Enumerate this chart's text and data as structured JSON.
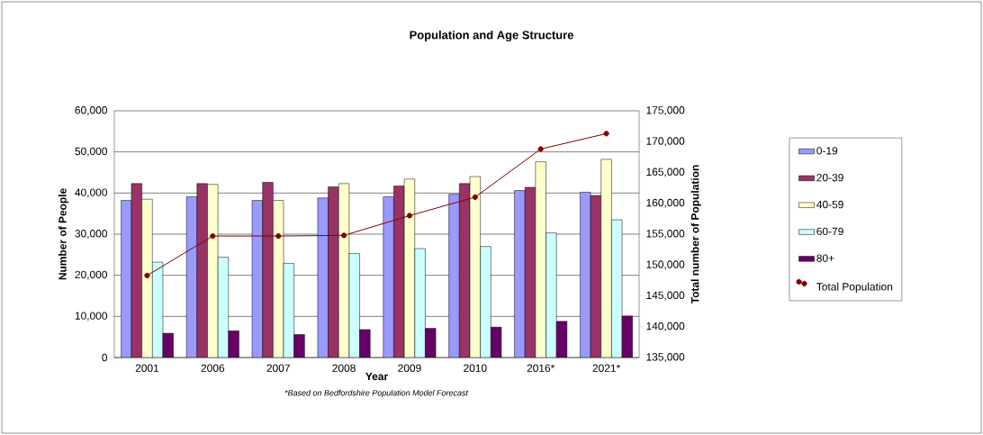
{
  "chart_data": {
    "type": "bar",
    "title": "Population and Age Structure",
    "xlabel": "Year",
    "ylabel": "Number of People",
    "y2label": "Total number of Population",
    "annotations": [
      "*Based on Bedfordshire Population Model Forecast"
    ],
    "categories": [
      "2001",
      "2006",
      "2007",
      "2008",
      "2009",
      "2010",
      "2016*",
      "2021*"
    ],
    "series": [
      {
        "name": "0-19",
        "color": "#9999ff",
        "values": [
          38200,
          39100,
          38200,
          38800,
          39100,
          39700,
          40600,
          40200
        ]
      },
      {
        "name": "20-39",
        "color": "#993366",
        "values": [
          42300,
          42300,
          42600,
          41500,
          41700,
          42300,
          41400,
          39400
        ]
      },
      {
        "name": "40-59",
        "color": "#ffffcc",
        "values": [
          38500,
          42100,
          38200,
          42300,
          43400,
          44000,
          47600,
          48200
        ]
      },
      {
        "name": "60-79",
        "color": "#ccffff",
        "values": [
          23200,
          24400,
          22900,
          25300,
          26500,
          27000,
          30300,
          33500
        ]
      },
      {
        "name": "80+",
        "color": "#660066",
        "values": [
          5900,
          6500,
          5600,
          6800,
          7100,
          7400,
          8800,
          10100
        ]
      },
      {
        "name": "Total Population",
        "type": "line",
        "axis": "y2",
        "color": "#800000",
        "values": [
          148300,
          154700,
          154700,
          154800,
          158000,
          161000,
          168800,
          171300
        ]
      }
    ],
    "ylim": [
      0,
      60000
    ],
    "yticks": [
      {
        "value": 0,
        "label": "0"
      },
      {
        "value": 10000,
        "label": "10,000"
      },
      {
        "value": 20000,
        "label": "20,000"
      },
      {
        "value": 30000,
        "label": "30,000"
      },
      {
        "value": 40000,
        "label": "40,000"
      },
      {
        "value": 50000,
        "label": "50,000"
      },
      {
        "value": 60000,
        "label": "60,000"
      }
    ],
    "y2lim": [
      135000,
      175000
    ],
    "y2ticks": [
      {
        "value": 135000,
        "label": "135,000"
      },
      {
        "value": 140000,
        "label": "140,000"
      },
      {
        "value": 145000,
        "label": "145,000"
      },
      {
        "value": 150000,
        "label": "150,000"
      },
      {
        "value": 155000,
        "label": "155,000"
      },
      {
        "value": 160000,
        "label": "160,000"
      },
      {
        "value": 165000,
        "label": "165,000"
      },
      {
        "value": 170000,
        "label": "170,000"
      },
      {
        "value": 175000,
        "label": "175,000"
      }
    ],
    "grid": "y",
    "legend": "right",
    "marker": "circle"
  }
}
